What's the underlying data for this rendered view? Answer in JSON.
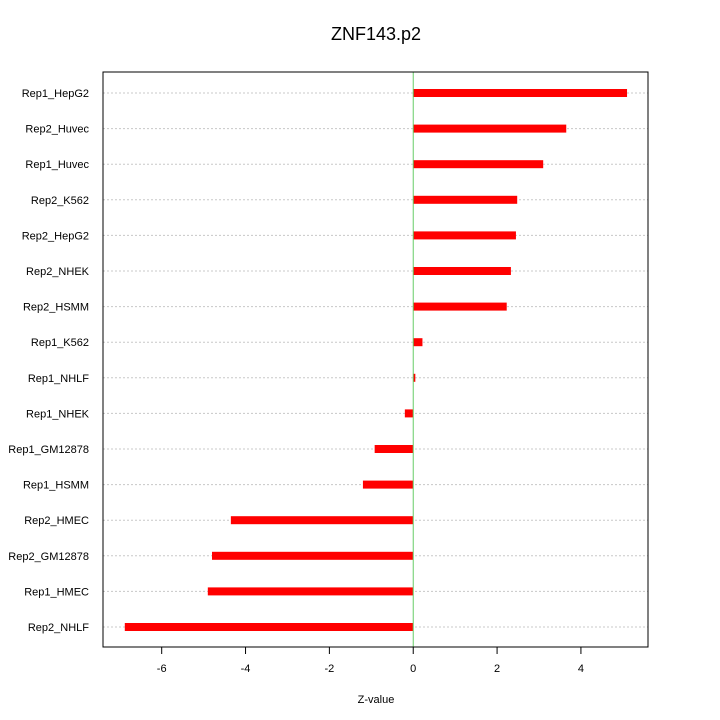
{
  "chart_data": {
    "type": "bar",
    "orientation": "horizontal",
    "title": "ZNF143.p2",
    "xlabel": "Z-value",
    "ylabel": "",
    "xlim": [
      -7.4,
      5.6
    ],
    "xticks": [
      -6,
      -4,
      -2,
      0,
      2,
      4
    ],
    "xtick_labels": [
      "-6",
      "-4",
      "-2",
      "0",
      "2",
      "4"
    ],
    "grid": "horizontal dotted",
    "bar_color": "#ff0000",
    "zero_line_color": "#66cc66",
    "categories": [
      "Rep1_HepG2",
      "Rep2_Huvec",
      "Rep1_Huvec",
      "Rep2_K562",
      "Rep2_HepG2",
      "Rep2_NHEK",
      "Rep2_HSMM",
      "Rep1_K562",
      "Rep1_NHLF",
      "Rep1_NHEK",
      "Rep1_GM12878",
      "Rep1_HSMM",
      "Rep2_HMEC",
      "Rep2_GM12878",
      "Rep1_HMEC",
      "Rep2_NHLF"
    ],
    "values": [
      5.1,
      3.65,
      3.1,
      2.48,
      2.45,
      2.33,
      2.23,
      0.22,
      0.05,
      -0.2,
      -0.92,
      -1.2,
      -4.35,
      -4.8,
      -4.9,
      -6.88
    ]
  }
}
